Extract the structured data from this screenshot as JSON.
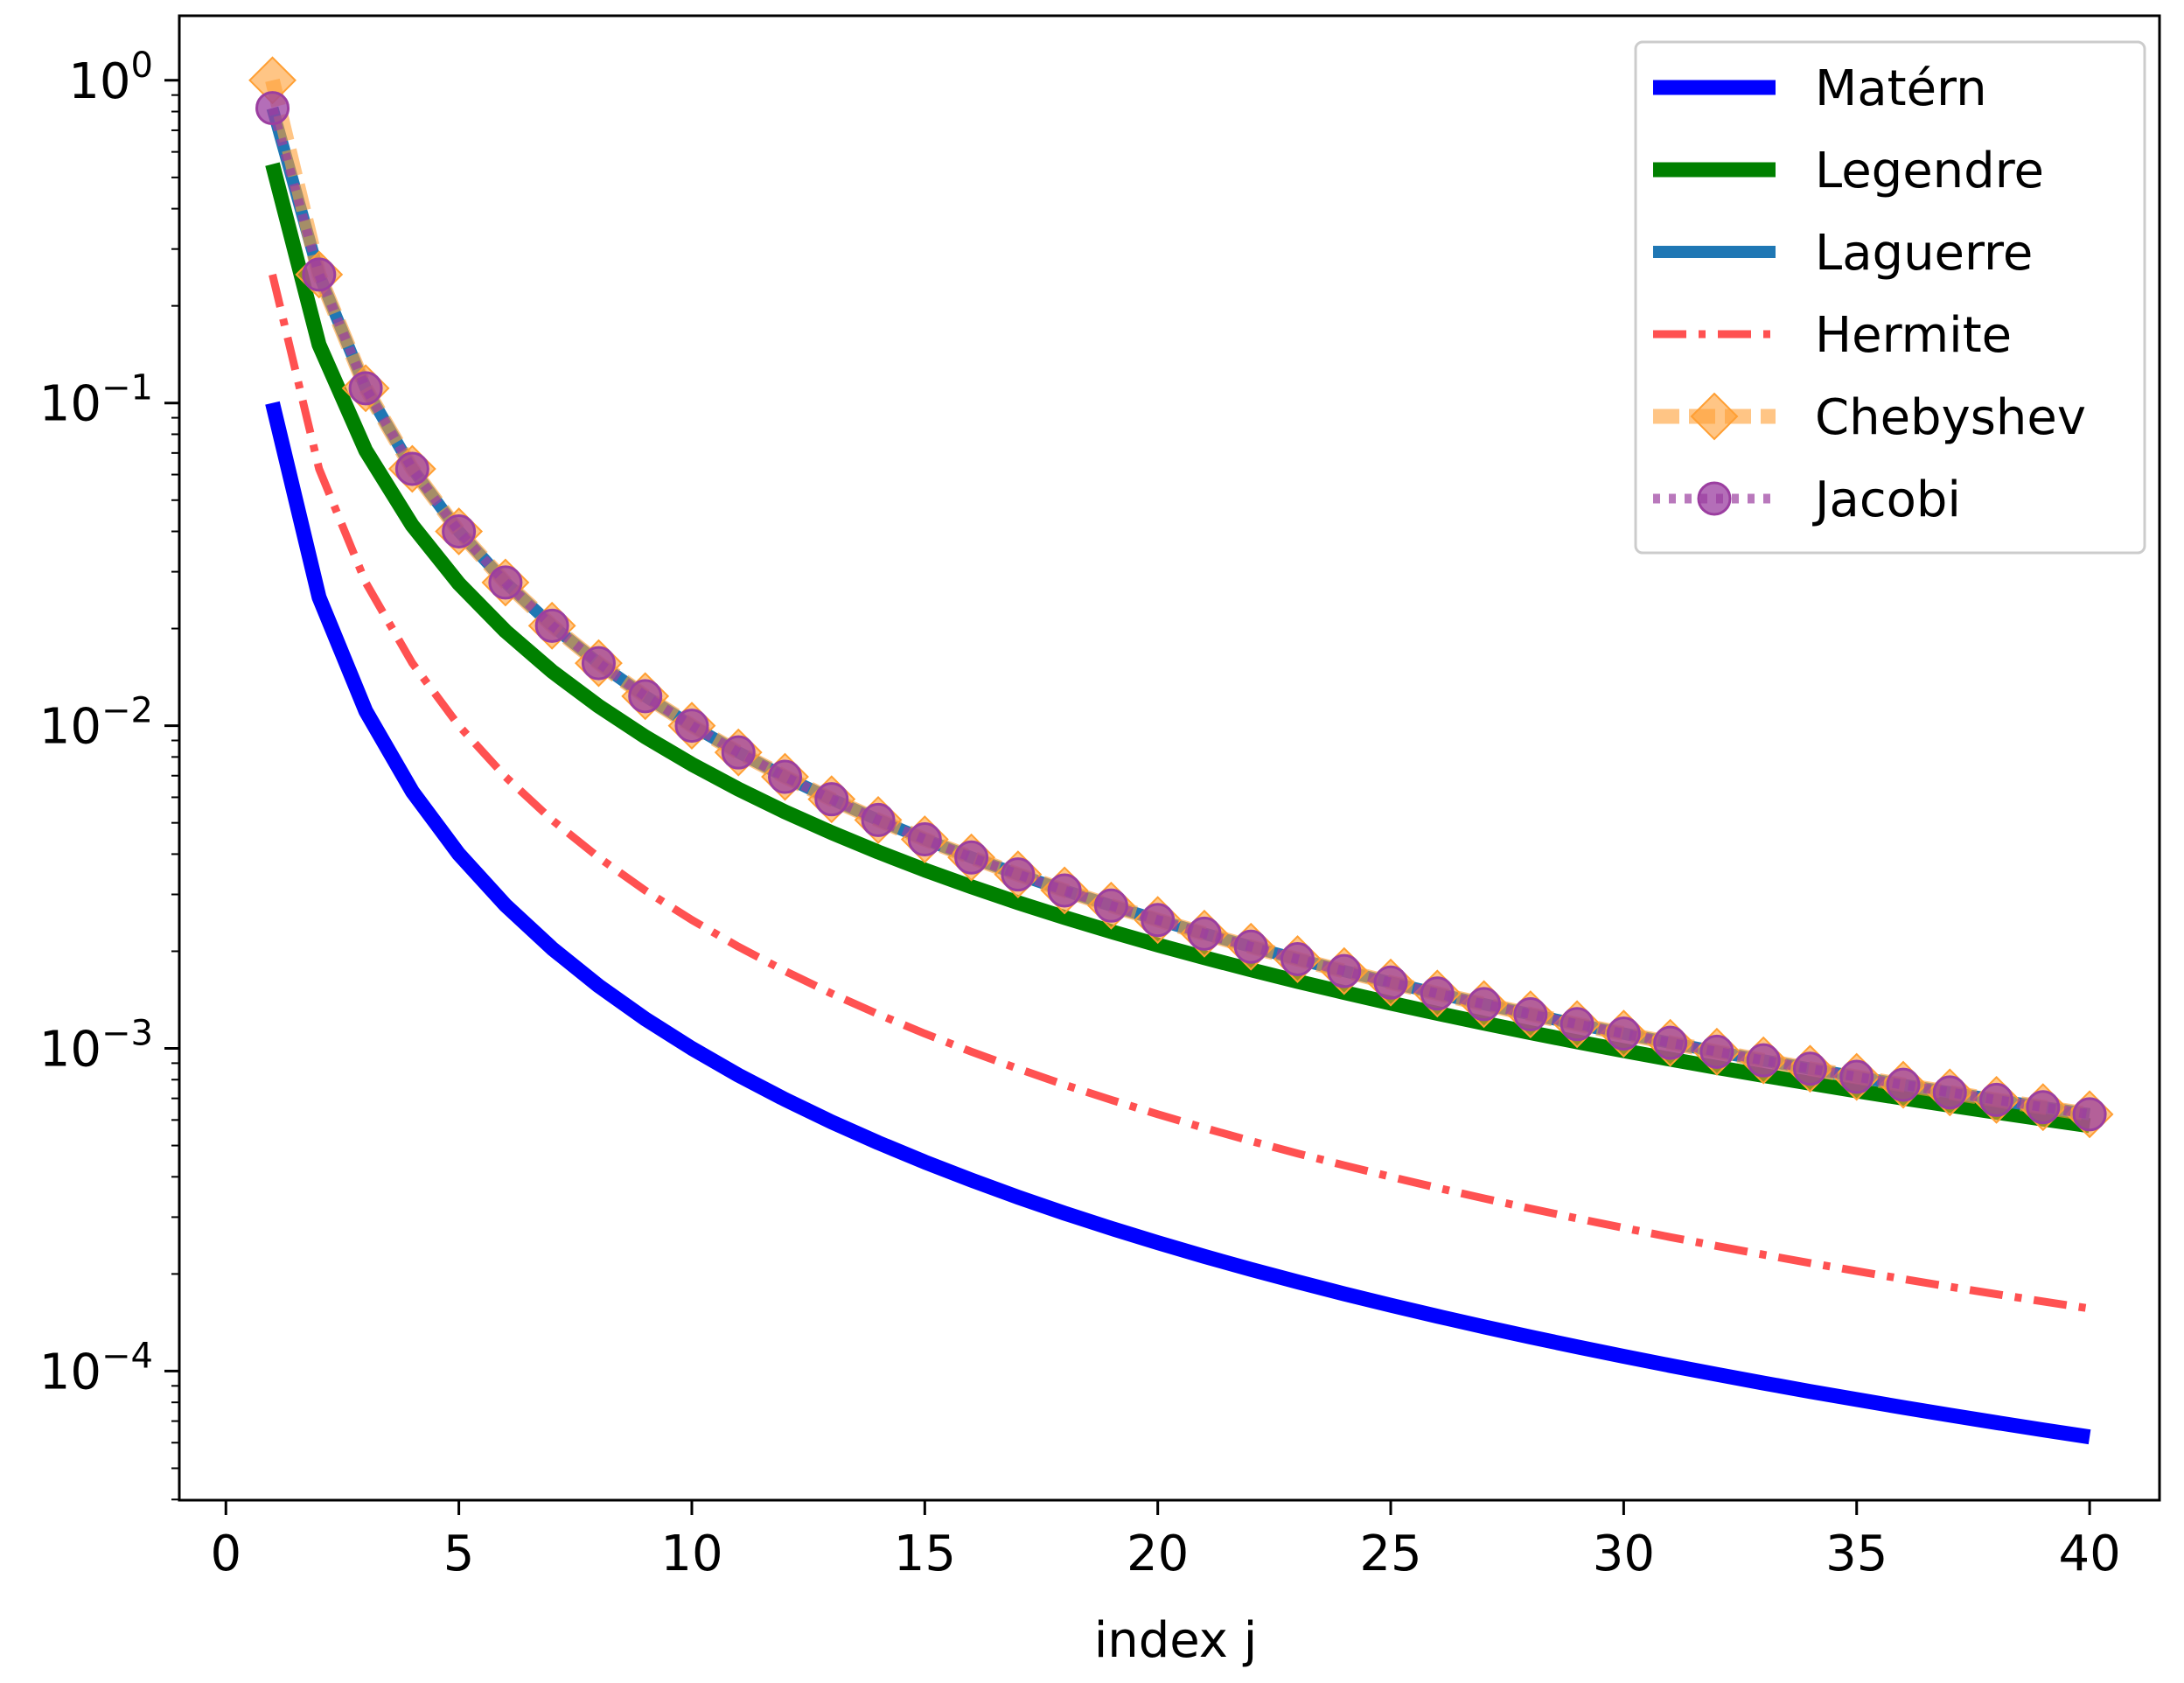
{
  "chart_data": {
    "type": "line",
    "title": "",
    "xlabel": "index j",
    "ylabel": "",
    "xlim": [
      -1,
      41.5
    ],
    "ylim_log10": [
      -4.4,
      0.2
    ],
    "yscale": "log",
    "grid": false,
    "legend_position": "upper right",
    "x_ticks": [
      {
        "value": 0,
        "label": "0"
      },
      {
        "value": 5,
        "label": "5"
      },
      {
        "value": 10,
        "label": "10"
      },
      {
        "value": 15,
        "label": "15"
      },
      {
        "value": 20,
        "label": "20"
      },
      {
        "value": 25,
        "label": "25"
      },
      {
        "value": 30,
        "label": "30"
      },
      {
        "value": 35,
        "label": "35"
      },
      {
        "value": 40,
        "label": "40"
      }
    ],
    "y_ticks": [
      {
        "exp": 0,
        "base": "10",
        "sup": "0"
      },
      {
        "exp": -1,
        "base": "10",
        "sup": "−1"
      },
      {
        "exp": -2,
        "base": "10",
        "sup": "−2"
      },
      {
        "exp": -3,
        "base": "10",
        "sup": "−3"
      },
      {
        "exp": -4,
        "base": "10",
        "sup": "−4"
      }
    ],
    "series": [
      {
        "name": "Matérn",
        "color": "#0000ff",
        "style": "solid",
        "marker": "none",
        "coef": 0.1,
        "power": 2.0
      },
      {
        "name": "Legendre",
        "color": "#008000",
        "style": "solid",
        "marker": "none",
        "coef": 0.55,
        "power": 1.86
      },
      {
        "name": "Laguerre",
        "color": "#1f77b4",
        "style": "solid",
        "marker": "none",
        "coef": 1.0,
        "power": 2.0,
        "first_value": 0.82
      },
      {
        "name": "Hermite",
        "color": "#ff3333",
        "style": "dashdot",
        "marker": "none",
        "coef": 0.25,
        "power": 2.0
      },
      {
        "name": "Chebyshev",
        "color": "#ff9f33",
        "style": "dashed",
        "marker": "diamond",
        "coef": 1.0,
        "power": 2.0
      },
      {
        "name": "Jacobi",
        "color": "#9b3ea0",
        "style": "dotted",
        "marker": "circle",
        "coef": 1.0,
        "power": 2.0,
        "first_value": 0.82
      }
    ]
  }
}
